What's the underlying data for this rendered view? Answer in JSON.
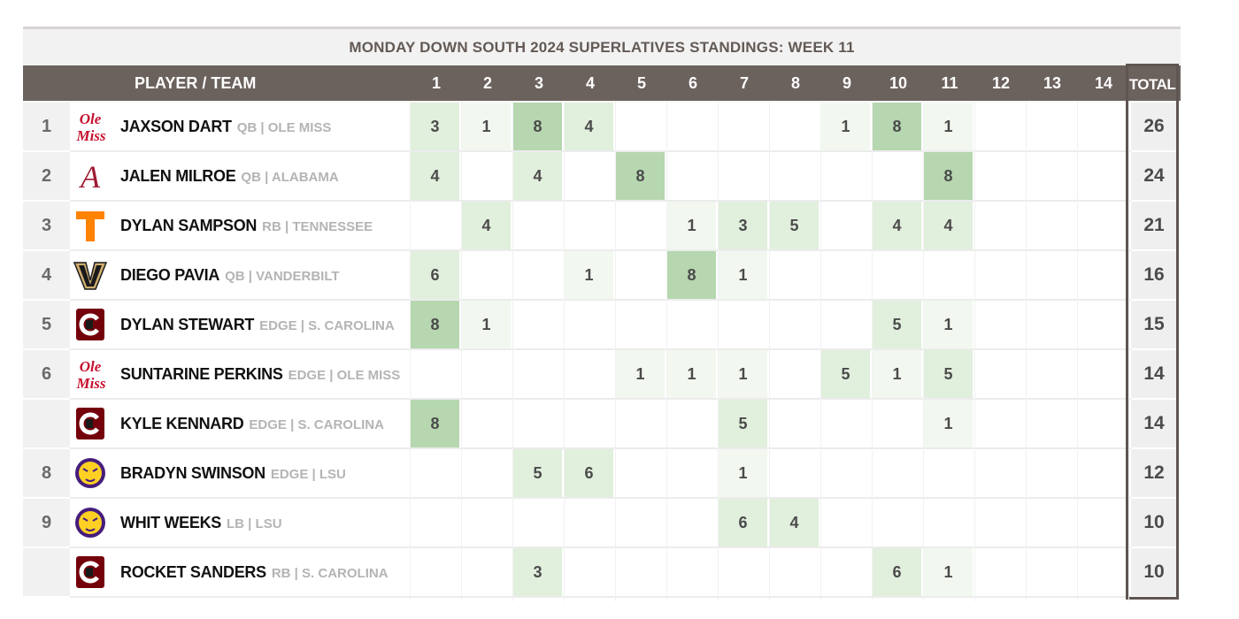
{
  "title": "MONDAY DOWN SOUTH 2024 SUPERLATIVES STANDINGS: WEEK 11",
  "header": {
    "player_team": "PLAYER / TEAM",
    "weeks": [
      "1",
      "2",
      "3",
      "4",
      "5",
      "6",
      "7",
      "8",
      "9",
      "10",
      "11",
      "12",
      "13",
      "14"
    ],
    "total": "TOTAL"
  },
  "colors": {
    "header_bg": "#6b615d",
    "shade_1": "#f2f8f0",
    "shade_2": "#e1efdd",
    "shade_3": "#b6d7b0"
  },
  "rows": [
    {
      "rank": "1",
      "logo": "ole-miss-logo",
      "logo_text": "Ole Miss",
      "name": "JAXSON DART",
      "meta": "QB | OLE MISS",
      "scores": [
        "3",
        "1",
        "8",
        "4",
        "",
        "",
        "",
        "",
        "1",
        "8",
        "1",
        "",
        "",
        ""
      ],
      "total": "26"
    },
    {
      "rank": "2",
      "logo": "alabama-logo",
      "logo_text": "A",
      "name": "JALEN MILROE",
      "meta": "QB | ALABAMA",
      "scores": [
        "4",
        "",
        "4",
        "",
        "8",
        "",
        "",
        "",
        "",
        "",
        "8",
        "",
        "",
        ""
      ],
      "total": "24"
    },
    {
      "rank": "3",
      "logo": "tennessee-logo",
      "logo_text": "T",
      "name": "DYLAN SAMPSON",
      "meta": "RB | TENNESSEE",
      "scores": [
        "",
        "4",
        "",
        "",
        "",
        "1",
        "3",
        "5",
        "",
        "4",
        "4",
        "",
        "",
        ""
      ],
      "total": "21"
    },
    {
      "rank": "4",
      "logo": "vanderbilt-logo",
      "logo_text": "V",
      "name": "DIEGO PAVIA",
      "meta": "QB | VANDERBILT",
      "scores": [
        "6",
        "",
        "",
        "1",
        "",
        "8",
        "1",
        "",
        "",
        "",
        "",
        "",
        "",
        ""
      ],
      "total": "16"
    },
    {
      "rank": "5",
      "logo": "south-carolina-logo",
      "logo_text": "C",
      "name": "DYLAN STEWART",
      "meta": "EDGE | S. CAROLINA",
      "scores": [
        "8",
        "1",
        "",
        "",
        "",
        "",
        "",
        "",
        "",
        "5",
        "1",
        "",
        "",
        ""
      ],
      "total": "15"
    },
    {
      "rank": "6",
      "logo": "ole-miss-logo",
      "logo_text": "Ole Miss",
      "name": "SUNTARINE PERKINS",
      "meta": "EDGE | OLE MISS",
      "scores": [
        "",
        "",
        "",
        "",
        "1",
        "1",
        "1",
        "",
        "5",
        "1",
        "5",
        "",
        "",
        ""
      ],
      "total": "14"
    },
    {
      "rank": "",
      "logo": "south-carolina-logo",
      "logo_text": "C",
      "name": "KYLE KENNARD",
      "meta": "EDGE | S. CAROLINA",
      "scores": [
        "8",
        "",
        "",
        "",
        "",
        "",
        "5",
        "",
        "",
        "",
        "1",
        "",
        "",
        ""
      ],
      "total": "14"
    },
    {
      "rank": "8",
      "logo": "lsu-logo",
      "logo_text": "",
      "name": "BRADYN SWINSON",
      "meta": "EDGE | LSU",
      "scores": [
        "",
        "",
        "5",
        "6",
        "",
        "",
        "1",
        "",
        "",
        "",
        "",
        "",
        "",
        ""
      ],
      "total": "12"
    },
    {
      "rank": "9",
      "logo": "lsu-logo",
      "logo_text": "",
      "name": "WHIT WEEKS",
      "meta": "LB | LSU",
      "scores": [
        "",
        "",
        "",
        "",
        "",
        "",
        "6",
        "4",
        "",
        "",
        "",
        "",
        "",
        ""
      ],
      "total": "10"
    },
    {
      "rank": "",
      "logo": "south-carolina-logo",
      "logo_text": "C",
      "name": "ROCKET SANDERS",
      "meta": "RB | S. CAROLINA",
      "scores": [
        "",
        "",
        "3",
        "",
        "",
        "",
        "",
        "",
        "",
        "6",
        "1",
        "",
        "",
        ""
      ],
      "total": "10"
    }
  ]
}
